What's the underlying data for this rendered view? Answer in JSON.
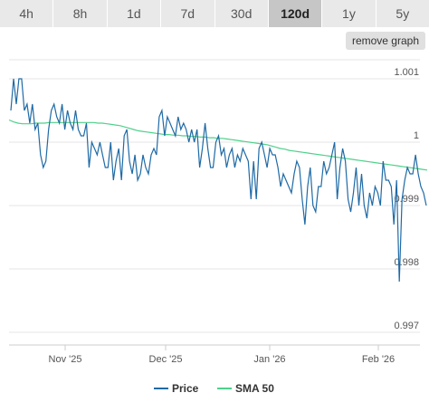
{
  "range_tabs": [
    "4h",
    "8h",
    "1d",
    "7d",
    "30d",
    "120d",
    "1y",
    "5y"
  ],
  "active_tab": "120d",
  "remove_graph_label": "remove graph",
  "chart_data": {
    "type": "line",
    "title": "",
    "xlabel": "",
    "ylabel": "",
    "ylim": [
      0.9968,
      1.0013
    ],
    "y_ticks": [
      0.997,
      0.998,
      0.999,
      1,
      1.001
    ],
    "y_tick_labels": [
      "0.997",
      "0.998",
      "0.999",
      "1",
      "1.001"
    ],
    "x_ticks": [
      "Nov '25",
      "Dec '25",
      "Jan '26",
      "Feb '26"
    ],
    "legend_position": "bottom-center",
    "grid": true,
    "colors": {
      "price": "#1f6aa5",
      "sma": "#4fd18b",
      "grid": "#e6e6e6"
    },
    "series": [
      {
        "name": "Price",
        "values": [
          1.0005,
          1.001,
          1.0006,
          1.001,
          1.001,
          1.0005,
          1.0006,
          1.0003,
          1.0006,
          1.0002,
          1.0003,
          0.9998,
          0.9996,
          0.9997,
          1.0002,
          1.0005,
          1.0006,
          1.0004,
          1.0003,
          1.0006,
          1.0002,
          1.0005,
          1.0003,
          1.0002,
          1.0005,
          1.0002,
          1.0001,
          1.0001,
          1.0003,
          0.9996,
          1.0,
          0.9999,
          0.9998,
          1.0,
          0.9998,
          0.9996,
          0.9996,
          1.0,
          0.9994,
          0.9997,
          0.9999,
          0.9994,
          1.0001,
          1.0002,
          0.9997,
          0.9995,
          0.9998,
          0.9994,
          0.9995,
          0.9998,
          0.9996,
          0.9995,
          0.9998,
          0.9999,
          0.9998,
          1.0004,
          1.0005,
          1.0001,
          1.0004,
          1.0003,
          1.0002,
          1.0001,
          1.0004,
          1.0002,
          1.0003,
          1.0002,
          1.0,
          1.0002,
          1.0,
          1.0002,
          0.9996,
          0.9999,
          1.0003,
          0.9999,
          0.9996,
          0.9996,
          1.0,
          1.0001,
          0.9998,
          0.9999,
          0.9996,
          0.9998,
          0.9999,
          0.9996,
          0.9998,
          0.9997,
          0.9999,
          0.9998,
          0.9997,
          0.9991,
          0.9997,
          0.9991,
          0.9999,
          1.0,
          0.9998,
          0.9996,
          0.9999,
          0.9998,
          0.9998,
          0.9996,
          0.9993,
          0.9995,
          0.9994,
          0.9993,
          0.9992,
          0.9995,
          0.9997,
          0.9996,
          0.9991,
          0.9987,
          0.9993,
          0.9996,
          0.999,
          0.9989,
          0.9993,
          0.9993,
          0.9997,
          0.9995,
          0.9996,
          0.9998,
          1.0,
          0.9991,
          0.9996,
          0.9999,
          0.9997,
          0.9991,
          0.9989,
          0.9992,
          0.9996,
          0.999,
          0.9995,
          0.999,
          0.9988,
          0.9992,
          0.999,
          0.9993,
          0.9992,
          0.999,
          0.9997,
          0.9994,
          0.9994,
          0.9993,
          0.9987,
          0.9994,
          0.9978,
          0.9991,
          0.9994,
          0.9996,
          0.9995,
          0.9995,
          0.9998,
          0.9995,
          0.9993,
          0.9992,
          0.999
        ],
        "color": "#1f6aa5"
      },
      {
        "name": "SMA 50",
        "values": [
          1.00035,
          1.00032,
          1.0003,
          1.00029,
          1.00029,
          1.00029,
          1.0003,
          1.0003,
          1.0003,
          1.00031,
          1.00031,
          1.00031,
          1.00031,
          1.00031,
          1.00031,
          1.00031,
          1.00031,
          1.00031,
          1.00031,
          1.00031,
          1.0003,
          1.0003,
          1.00029,
          1.00028,
          1.00027,
          1.00026,
          1.00024,
          1.00022,
          1.0002,
          1.00018,
          1.00017,
          1.00016,
          1.00015,
          1.00014,
          1.00013,
          1.00012,
          1.00012,
          1.00011,
          1.00011,
          1.0001,
          1.0001,
          1.00009,
          1.00009,
          1.00008,
          1.00008,
          1.00007,
          1.00007,
          1.00006,
          1.00006,
          1.00005,
          1.00004,
          1.00003,
          1.00002,
          1.00001,
          1.0,
          0.99999,
          0.99998,
          0.99997,
          0.99996,
          0.99994,
          0.99992,
          0.9999,
          0.99989,
          0.99987,
          0.99986,
          0.99985,
          0.99984,
          0.99983,
          0.99982,
          0.99981,
          0.9998,
          0.99979,
          0.99978,
          0.99977,
          0.99976,
          0.99975,
          0.99974,
          0.99973,
          0.99972,
          0.99971,
          0.9997,
          0.99969,
          0.99968,
          0.99967,
          0.99966,
          0.99965,
          0.99964,
          0.99963,
          0.99962,
          0.99961,
          0.9996,
          0.99959,
          0.99958,
          0.99957,
          0.99956
        ],
        "color": "#4fd18b"
      }
    ]
  }
}
